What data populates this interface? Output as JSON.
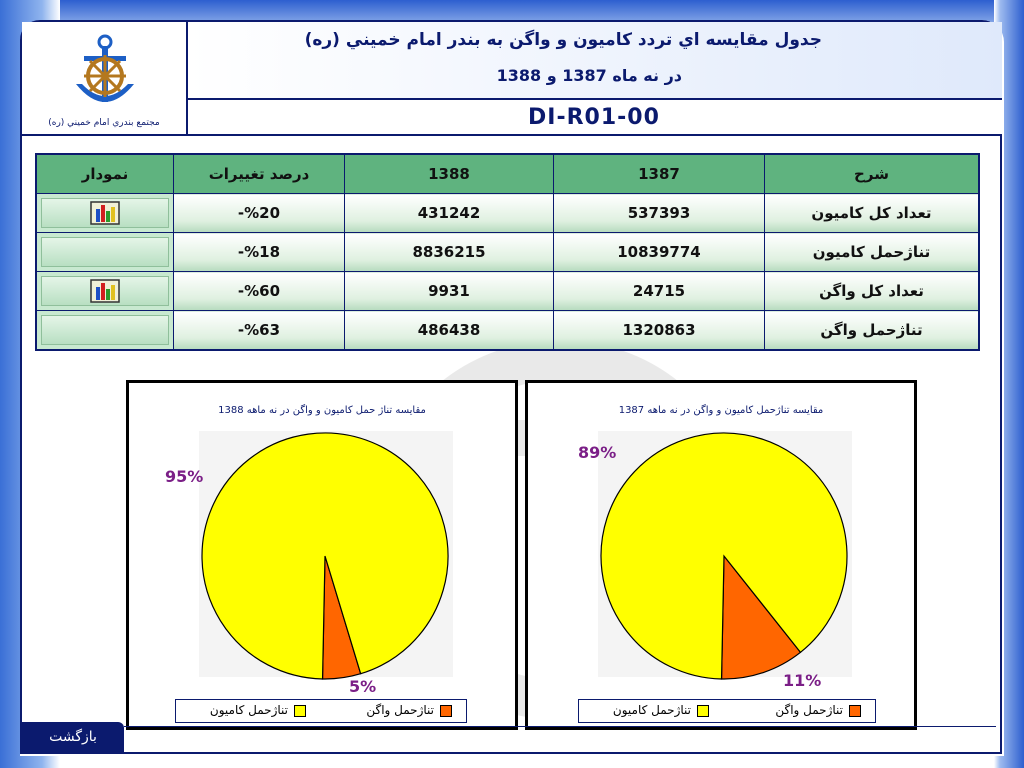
{
  "header": {
    "logo_caption": "مجتمع بندري امام خميني (ره)",
    "title_line1": "جدول مقايسه اي تردد كاميون و واگن به بندر امام خميني (ره)",
    "title_line2": "در نه ماه 1387 و 1388",
    "doc_code": "DI-R01-00"
  },
  "table": {
    "columns": [
      "شرح",
      "1387",
      "1388",
      "درصد تغييرات",
      "نمودار"
    ],
    "rows": [
      {
        "desc": "تعداد كل كاميون",
        "y1387": "537393",
        "y1388": "431242",
        "pct": "-%20",
        "has_chart": true
      },
      {
        "desc": "تناژحمل كاميون",
        "y1387": "10839774",
        "y1388": "8836215",
        "pct": "-%18",
        "has_chart": false
      },
      {
        "desc": "تعداد كل واگن",
        "y1387": "24715",
        "y1388": "9931",
        "pct": "-%60",
        "has_chart": true
      },
      {
        "desc": "تناژحمل واگن",
        "y1387": "1320863",
        "y1388": "486438",
        "pct": "-%63",
        "has_chart": false
      }
    ]
  },
  "chart_data": [
    {
      "type": "pie",
      "title": "مقايسه تناژحمل كاميون و واگن در نه ماهه 1387",
      "categories": [
        "تناژحمل كاميون",
        "تناژحمل واگن"
      ],
      "values": [
        89,
        11
      ],
      "labels": [
        "89%",
        "11%"
      ],
      "colors": [
        "#ffff00",
        "#ff6600"
      ]
    },
    {
      "type": "pie",
      "title": "مقايسه تناژ حمل كاميون و واگن در نه ماهه 1388",
      "categories": [
        "تناژحمل كاميون",
        "تناژحمل واگن"
      ],
      "values": [
        95,
        5
      ],
      "labels": [
        "95%",
        "5%"
      ],
      "colors": [
        "#ffff00",
        "#ff6600"
      ]
    }
  ],
  "footer": {
    "back_label": "بازگشت"
  },
  "icons": {
    "logo": "anchor-ship-wheel-logo",
    "chart_button": "bar-chart-icon"
  }
}
